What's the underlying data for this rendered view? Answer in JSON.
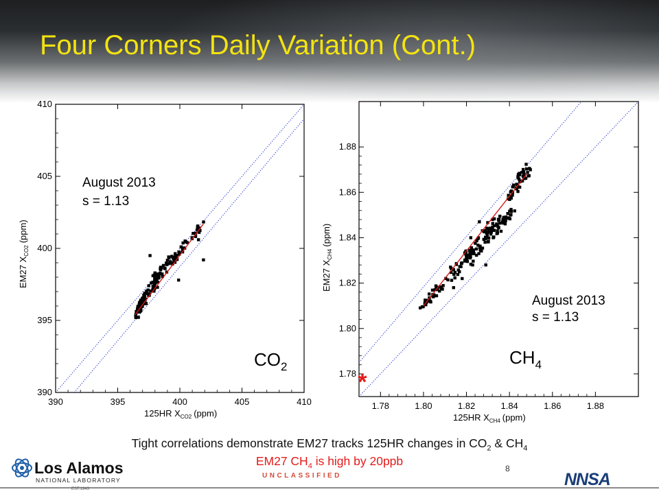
{
  "slide": {
    "title": "Four Corners Daily Variation (Cont.)",
    "caption_line1_a": "Tight correlations demonstrate EM27 tracks 125HR changes in CO",
    "caption_line1_sub1": "2",
    "caption_line1_b": " & CH",
    "caption_line1_sub2": "4",
    "caption_line2_a": "EM27 CH",
    "caption_line2_sub": "4",
    "caption_line2_b": " is high by 20ppb",
    "classification": "UNCLASSIFIED",
    "page_number": "8",
    "logo_left_text": "Los Alamos",
    "logo_left_sub": "NATIONAL LABORATORY",
    "logo_left_est": "EST.1943",
    "logo_right_text": "NNSA"
  },
  "chart_data": [
    {
      "type": "scatter",
      "xlabel_main": "125HR X",
      "xlabel_sub": "CO2",
      "xlabel_unit": "(ppm)",
      "ylabel_main": "EM27 X",
      "ylabel_sub": "CO2",
      "ylabel_unit": "(ppm)",
      "xlim": [
        390,
        410
      ],
      "ylim": [
        390,
        410
      ],
      "xticks": [
        390,
        395,
        400,
        405,
        410
      ],
      "yticks": [
        390,
        395,
        400,
        405,
        410
      ],
      "annotation_line1": "August 2013",
      "annotation_line2": "s = 1.13",
      "species_main": "CO",
      "species_sub": "2",
      "fit": {
        "x": [
          396.4,
          401.9
        ],
        "y": [
          395.4,
          401.7
        ]
      },
      "reference_lines": [
        {
          "x": [
            390,
            410
          ],
          "y": [
            390,
            410
          ]
        },
        {
          "x": [
            391.5,
            410
          ],
          "y": [
            390,
            409
          ]
        }
      ],
      "clusters": [
        {
          "x0": 396.5,
          "x1": 397.2,
          "y0": 395.3,
          "y1": 396.8,
          "n": 70
        },
        {
          "x0": 397.0,
          "x1": 398.2,
          "y0": 396.0,
          "y1": 398.0,
          "n": 40
        },
        {
          "x0": 398.0,
          "x1": 399.5,
          "y0": 397.8,
          "y1": 399.5,
          "n": 35
        },
        {
          "x0": 399.3,
          "x1": 400.5,
          "y0": 399.0,
          "y1": 400.3,
          "n": 20
        },
        {
          "x0": 400.5,
          "x1": 401.9,
          "y0": 400.5,
          "y1": 401.7,
          "n": 18
        }
      ],
      "outliers": [
        {
          "x": 398.2,
          "y": 397.3
        },
        {
          "x": 399.9,
          "y": 397.8
        },
        {
          "x": 401.9,
          "y": 399.2
        },
        {
          "x": 397.6,
          "y": 399.5
        },
        {
          "x": 400.1,
          "y": 400.1
        },
        {
          "x": 401.5,
          "y": 400.6
        }
      ]
    },
    {
      "type": "scatter",
      "xlabel_main": "125HR X",
      "xlabel_sub": "CH4",
      "xlabel_unit": "(ppm)",
      "ylabel_main": "EM27 X",
      "ylabel_sub": "CH4",
      "ylabel_unit": "(ppm)",
      "xlim": [
        1.77,
        1.9
      ],
      "ylim": [
        1.77,
        1.9
      ],
      "xticks": [
        1.78,
        1.8,
        1.82,
        1.84,
        1.86,
        1.88
      ],
      "yticks": [
        1.78,
        1.8,
        1.82,
        1.84,
        1.86,
        1.88
      ],
      "annotation_line1": "August 2013",
      "annotation_line2": "s = 1.13",
      "species_main": "CH",
      "species_sub": "4",
      "marker_star": {
        "x": 1.772,
        "y": 1.779
      },
      "fit": {
        "x": [
          1.8,
          1.848
        ],
        "y": [
          1.81,
          1.868
        ]
      },
      "reference_lines": [
        {
          "x": [
            1.77,
            1.9
          ],
          "y": [
            1.77,
            1.9
          ]
        },
        {
          "x": [
            1.77,
            1.9
          ],
          "y": [
            1.785,
            1.9295
          ]
        }
      ],
      "clusters": [
        {
          "x0": 1.799,
          "x1": 1.808,
          "y0": 1.809,
          "y1": 1.818,
          "n": 35
        },
        {
          "x0": 1.812,
          "x1": 1.822,
          "y0": 1.822,
          "y1": 1.835,
          "n": 30
        },
        {
          "x0": 1.82,
          "x1": 1.835,
          "y0": 1.83,
          "y1": 1.848,
          "n": 70
        },
        {
          "x0": 1.83,
          "x1": 1.842,
          "y0": 1.84,
          "y1": 1.853,
          "n": 40
        },
        {
          "x0": 1.84,
          "x1": 1.849,
          "y0": 1.858,
          "y1": 1.871,
          "n": 45
        }
      ],
      "outliers": [
        {
          "x": 1.814,
          "y": 1.818
        },
        {
          "x": 1.818,
          "y": 1.822
        },
        {
          "x": 1.829,
          "y": 1.828
        },
        {
          "x": 1.826,
          "y": 1.847
        },
        {
          "x": 1.822,
          "y": 1.84
        }
      ]
    }
  ]
}
